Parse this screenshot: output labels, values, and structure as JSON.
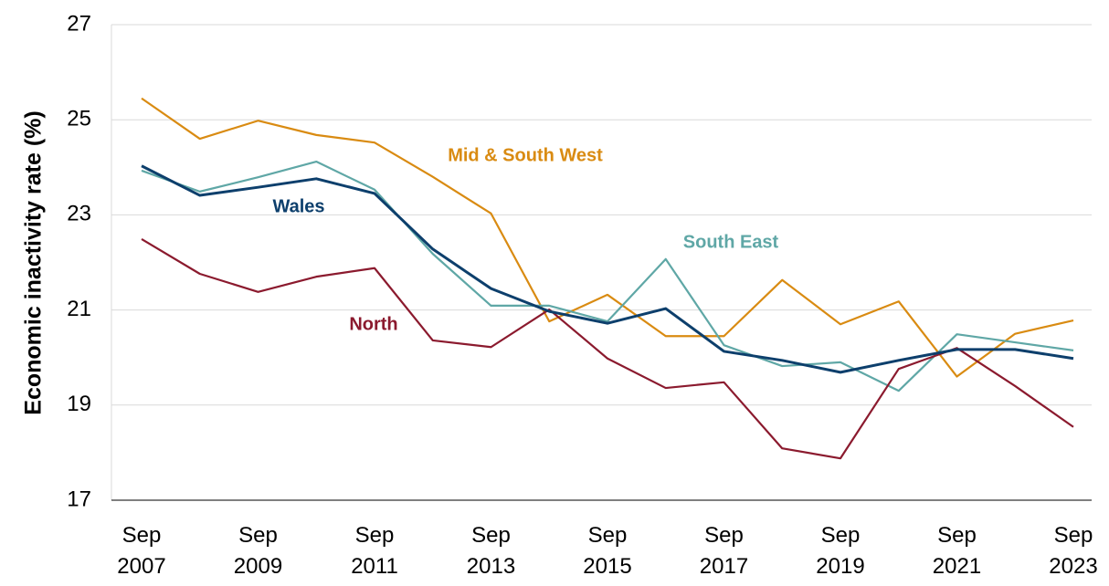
{
  "chart_data": {
    "type": "line",
    "y_label": "Economic inactivity rate (%)",
    "categories": [
      "Sep 2007",
      null,
      "Sep 2009",
      null,
      "Sep 2011",
      null,
      "Sep 2013",
      null,
      "Sep 2015",
      null,
      "Sep 2017",
      null,
      "Sep 2019",
      null,
      "Sep 2021",
      null,
      "Sep 2023"
    ],
    "series": [
      {
        "name": "Mid & South West",
        "color": "#d98b12",
        "values": [
          25.45,
          24.6,
          24.98,
          24.68,
          24.52,
          23.8,
          23.03,
          20.76,
          21.32,
          20.45,
          20.45,
          21.63,
          20.7,
          21.18,
          19.6,
          20.5,
          20.78
        ]
      },
      {
        "name": "South East",
        "color": "#5fa7a6",
        "values": [
          23.93,
          23.49,
          23.79,
          24.12,
          23.53,
          22.18,
          21.09,
          21.09,
          20.76,
          22.07,
          20.26,
          19.82,
          19.9,
          19.3,
          20.49,
          20.32,
          20.15
        ]
      },
      {
        "name": "North",
        "color": "#8b1a2e",
        "values": [
          22.49,
          21.76,
          21.38,
          21.7,
          21.88,
          20.36,
          20.22,
          21.01,
          19.98,
          19.36,
          19.48,
          18.09,
          17.88,
          19.76,
          20.2,
          19.4,
          18.54
        ]
      },
      {
        "name": "Wales",
        "color": "#0d3f6c",
        "values": [
          24.03,
          23.41,
          23.58,
          23.76,
          23.45,
          22.28,
          21.45,
          20.97,
          20.72,
          21.03,
          20.13,
          19.94,
          19.69,
          19.94,
          20.17,
          20.17,
          19.98
        ]
      }
    ],
    "ylim": [
      17,
      27
    ],
    "yticks": [
      17,
      19,
      21,
      23,
      25,
      27
    ],
    "grid": true
  }
}
